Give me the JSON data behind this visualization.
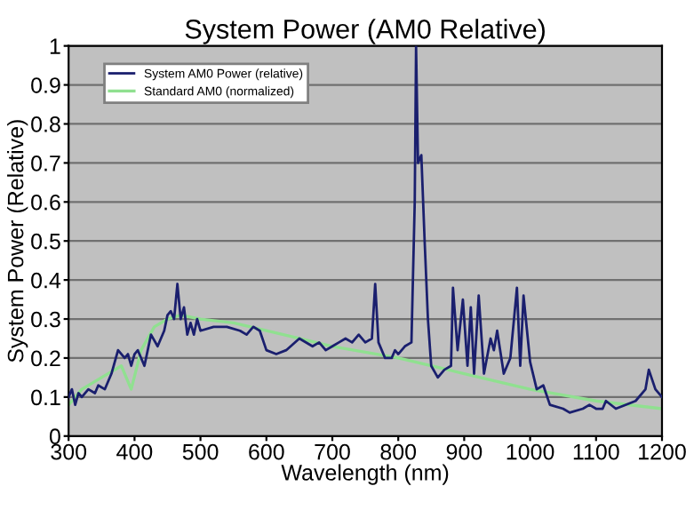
{
  "chart_data": {
    "type": "line",
    "title": "System Power (AM0 Relative)",
    "xlabel": "Wavelength (nm)",
    "ylabel": "System Power (Relative)",
    "xlim": [
      300,
      1200
    ],
    "xticks": [
      300,
      400,
      500,
      600,
      700,
      800,
      900,
      1000,
      1100,
      1200
    ],
    "ylim": [
      0,
      1
    ],
    "yticks": [
      0,
      0.1,
      0.2,
      0.3,
      0.4,
      0.5,
      0.6,
      0.7,
      0.8,
      0.9,
      1
    ],
    "grid": "y",
    "legend": "top left",
    "series": [
      {
        "name": "System AM0 Power (relative)",
        "color": "#1a1f6e",
        "x": [
          300,
          305,
          310,
          315,
          320,
          330,
          340,
          345,
          355,
          365,
          375,
          385,
          390,
          395,
          400,
          405,
          410,
          415,
          425,
          435,
          445,
          450,
          455,
          460,
          465,
          470,
          475,
          480,
          485,
          490,
          495,
          500,
          520,
          540,
          560,
          570,
          580,
          590,
          600,
          615,
          630,
          650,
          670,
          680,
          690,
          700,
          710,
          720,
          730,
          740,
          750,
          760,
          765,
          770,
          780,
          790,
          795,
          800,
          810,
          820,
          825,
          827,
          830,
          835,
          840,
          845,
          850,
          860,
          870,
          880,
          883,
          890,
          898,
          905,
          910,
          915,
          922,
          930,
          940,
          945,
          950,
          960,
          970,
          980,
          985,
          990,
          1000,
          1010,
          1020,
          1030,
          1050,
          1060,
          1080,
          1090,
          1100,
          1110,
          1115,
          1130,
          1160,
          1175,
          1180,
          1190,
          1200
        ],
        "values": [
          0.1,
          0.12,
          0.08,
          0.11,
          0.1,
          0.12,
          0.11,
          0.13,
          0.12,
          0.16,
          0.22,
          0.2,
          0.21,
          0.18,
          0.21,
          0.22,
          0.2,
          0.18,
          0.26,
          0.23,
          0.27,
          0.31,
          0.32,
          0.3,
          0.39,
          0.3,
          0.33,
          0.26,
          0.29,
          0.26,
          0.3,
          0.27,
          0.28,
          0.28,
          0.27,
          0.26,
          0.28,
          0.27,
          0.22,
          0.21,
          0.22,
          0.25,
          0.23,
          0.24,
          0.22,
          0.23,
          0.24,
          0.25,
          0.24,
          0.26,
          0.24,
          0.25,
          0.39,
          0.24,
          0.2,
          0.2,
          0.22,
          0.21,
          0.23,
          0.24,
          0.6,
          1.0,
          0.7,
          0.72,
          0.5,
          0.3,
          0.18,
          0.15,
          0.17,
          0.18,
          0.38,
          0.22,
          0.35,
          0.18,
          0.33,
          0.16,
          0.36,
          0.16,
          0.25,
          0.22,
          0.27,
          0.16,
          0.2,
          0.38,
          0.18,
          0.36,
          0.19,
          0.12,
          0.13,
          0.08,
          0.07,
          0.06,
          0.07,
          0.08,
          0.07,
          0.07,
          0.09,
          0.07,
          0.09,
          0.12,
          0.17,
          0.12,
          0.1
        ]
      },
      {
        "name": "Standard AM0 (normalized)",
        "color": "#90e090",
        "x": [
          300,
          320,
          350,
          380,
          395,
          410,
          430,
          450,
          470,
          500,
          550,
          600,
          650,
          700,
          800,
          900,
          1000,
          1100,
          1200
        ],
        "values": [
          0.08,
          0.12,
          0.15,
          0.18,
          0.12,
          0.22,
          0.28,
          0.3,
          0.31,
          0.3,
          0.29,
          0.27,
          0.25,
          0.23,
          0.2,
          0.16,
          0.12,
          0.09,
          0.07
        ]
      }
    ]
  }
}
